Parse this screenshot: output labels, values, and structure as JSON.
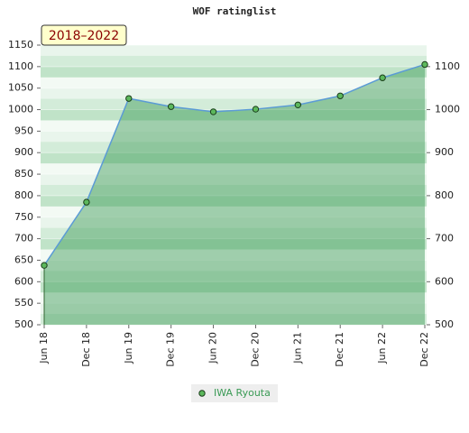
{
  "chart_data": {
    "type": "area",
    "title": "WOF ratinglist",
    "annotation": "2018–2022",
    "categories": [
      "Jun 18",
      "Dec 18",
      "Jun 19",
      "Dec 19",
      "Jun 20",
      "Dec 20",
      "Jun 21",
      "Dec 21",
      "Jun 22",
      "Dec 22"
    ],
    "series": [
      {
        "name": "IWA Ryouta",
        "color": "#3a9a55",
        "values": [
          638,
          785,
          1026,
          1007,
          995,
          1001,
          1011,
          1032,
          1074,
          1105
        ]
      }
    ],
    "ylim": [
      500,
      1150
    ],
    "yticks": [
      500,
      550,
      600,
      650,
      700,
      750,
      800,
      850,
      900,
      950,
      1000,
      1050,
      1100,
      1150
    ],
    "y2lim": [
      500,
      1150
    ],
    "y2ticks": [
      500,
      600,
      700,
      800,
      900,
      1000,
      1100
    ],
    "grid": true
  }
}
